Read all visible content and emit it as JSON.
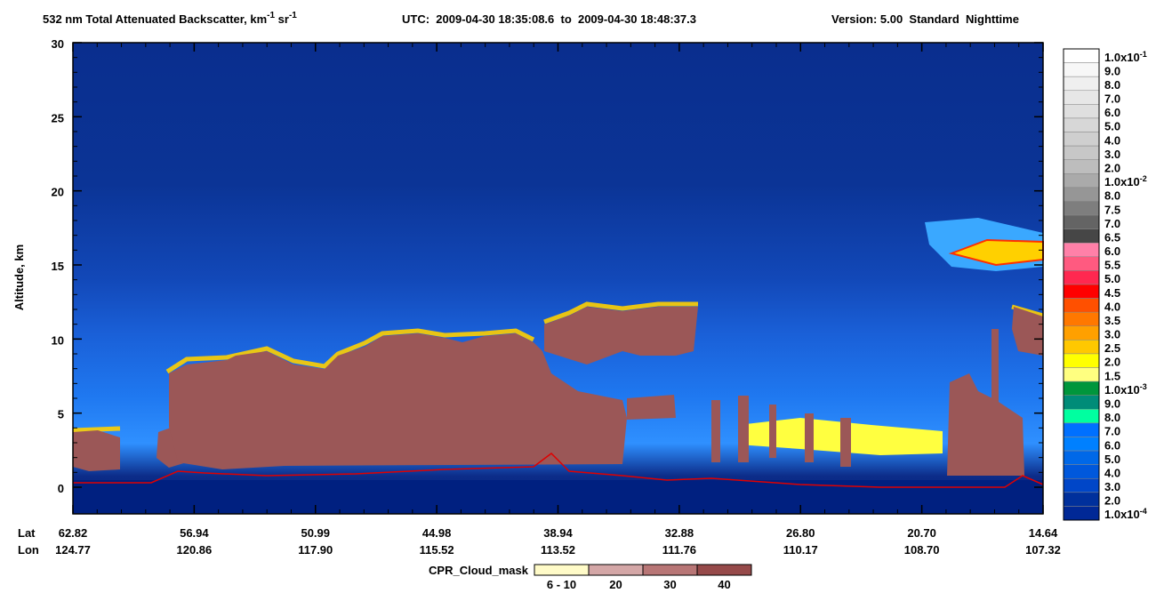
{
  "chart_data": {
    "type": "curtain",
    "title": {
      "main": "532 nm Total Attenuated Backscatter, km",
      "main_sup": "-1",
      "unit2": " sr",
      "unit2_sup": "-1",
      "utc": "UTC:  2009-04-30 18:35:08.6  to  2009-04-30 18:48:37.3",
      "version": "Version: 5.00  Standard  Nighttime"
    },
    "ylabel": "Altitude, km",
    "ylim": [
      -1.8,
      30
    ],
    "yticks": [
      0,
      5,
      10,
      15,
      20,
      25,
      30
    ],
    "x_rows": [
      {
        "name": "Lat",
        "values": [
          62.82,
          56.94,
          50.99,
          44.98,
          38.94,
          32.88,
          {
            "value": 26.8,
            "label": "26.80"
          },
          {
            "value": 20.7,
            "label": "20.70"
          },
          14.64
        ]
      },
      {
        "name": "Lon",
        "values": [
          124.77,
          120.86,
          {
            "value": 117.9,
            "label": "117.90"
          },
          115.52,
          113.52,
          111.76,
          110.17,
          {
            "value": 108.7,
            "label": "108.70"
          },
          107.32
        ]
      }
    ],
    "colorbar": [
      {
        "label": "1.0x10",
        "sup": "-1",
        "color": "#ffffff"
      },
      {
        "label": "9.0",
        "color": "#f7f7f7"
      },
      {
        "label": "8.0",
        "color": "#efefef"
      },
      {
        "label": "7.0",
        "color": "#e7e7e7"
      },
      {
        "label": "6.0",
        "color": "#dfdfdf"
      },
      {
        "label": "5.0",
        "color": "#d7d7d7"
      },
      {
        "label": "4.0",
        "color": "#cfcfcf"
      },
      {
        "label": "3.0",
        "color": "#c7c7c7"
      },
      {
        "label": "2.0",
        "color": "#bdbdbd"
      },
      {
        "label": "1.0x10",
        "sup": "-2",
        "color": "#aaaaaa"
      },
      {
        "label": "8.0",
        "color": "#969696"
      },
      {
        "label": "7.5",
        "color": "#7e7e7e"
      },
      {
        "label": "7.0",
        "color": "#646464"
      },
      {
        "label": "6.5",
        "color": "#464646"
      },
      {
        "label": "6.0",
        "color": "#ff80a8"
      },
      {
        "label": "5.5",
        "color": "#ff5a80"
      },
      {
        "label": "5.0",
        "color": "#ff2850"
      },
      {
        "label": "4.5",
        "color": "#ff0000"
      },
      {
        "label": "4.0",
        "color": "#ff5000"
      },
      {
        "label": "3.5",
        "color": "#ff7800"
      },
      {
        "label": "3.0",
        "color": "#ffa000"
      },
      {
        "label": "2.5",
        "color": "#ffc800"
      },
      {
        "label": "2.0",
        "color": "#ffff00"
      },
      {
        "label": "1.5",
        "color": "#ffff80"
      },
      {
        "label": "1.0x10",
        "sup": "-3",
        "color": "#00963c"
      },
      {
        "label": "9.0",
        "color": "#008c78"
      },
      {
        "label": "8.0",
        "color": "#00ffa0"
      },
      {
        "label": "7.0",
        "color": "#0070ff"
      },
      {
        "label": "6.0",
        "color": "#0080ff"
      },
      {
        "label": "5.0",
        "color": "#0068e8"
      },
      {
        "label": "4.0",
        "color": "#0058dc"
      },
      {
        "label": "3.0",
        "color": "#0046c8"
      },
      {
        "label": "2.0",
        "color": "#00309c"
      },
      {
        "label": "1.0x10",
        "sup": "-4",
        "color": "#002896"
      }
    ],
    "cpr_legend": {
      "name": "CPR_Cloud_mask",
      "items": [
        {
          "label": "6 - 10",
          "color": "#fffbc8"
        },
        {
          "label": "20",
          "color": "#d4a7a7"
        },
        {
          "label": "30",
          "color": "#b87676"
        },
        {
          "label": "40",
          "color": "#964a4a"
        }
      ]
    }
  }
}
